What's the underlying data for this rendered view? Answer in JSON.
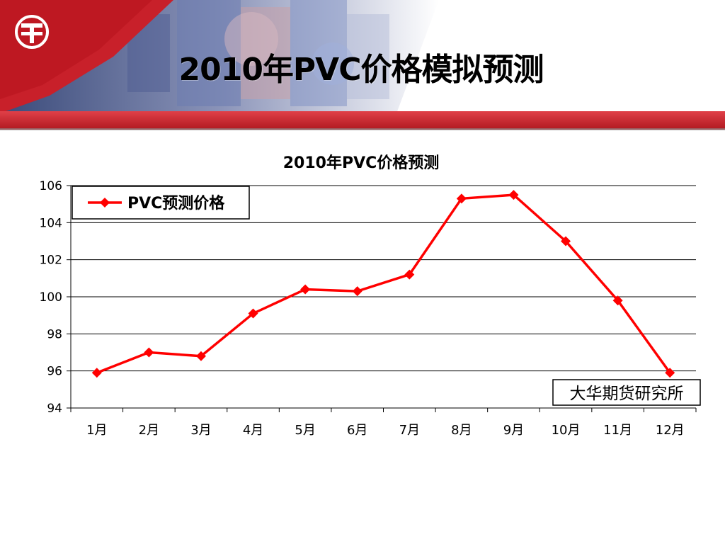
{
  "slide": {
    "title": "2010年PVC价格模拟预测"
  },
  "colors": {
    "banner_red": "#c8202a",
    "series": "#ff0000"
  },
  "chart_data": {
    "type": "line",
    "title": "2010年PVC价格预测",
    "xlabel": "",
    "ylabel": "",
    "categories": [
      "1月",
      "2月",
      "3月",
      "4月",
      "5月",
      "6月",
      "7月",
      "8月",
      "9月",
      "10月",
      "11月",
      "12月"
    ],
    "series": [
      {
        "name": "PVC预测价格",
        "values": [
          95.9,
          97.0,
          96.8,
          99.1,
          100.4,
          100.3,
          101.2,
          105.3,
          105.5,
          103.0,
          99.8,
          95.9
        ],
        "color": "#ff0000",
        "marker": "diamond"
      }
    ],
    "ylim": [
      94,
      106
    ],
    "yticks": [
      94,
      96,
      98,
      100,
      102,
      104,
      106
    ],
    "grid": true,
    "legend_position": "top-left",
    "source_label": "大华期货研究所",
    "source_position": "bottom-right"
  }
}
